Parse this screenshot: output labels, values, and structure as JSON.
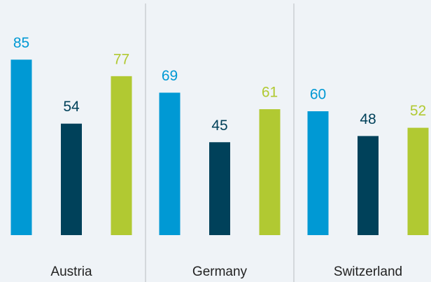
{
  "chart_data": {
    "type": "bar",
    "categories": [
      "Austria",
      "Germany",
      "Switzerland"
    ],
    "series": [
      {
        "color": "#0099d4",
        "values": [
          85,
          69,
          60
        ]
      },
      {
        "color": "#00415a",
        "values": [
          54,
          45,
          48
        ]
      },
      {
        "color": "#b1c932",
        "values": [
          77,
          61,
          52
        ]
      }
    ],
    "ylim": [
      0,
      100
    ]
  }
}
